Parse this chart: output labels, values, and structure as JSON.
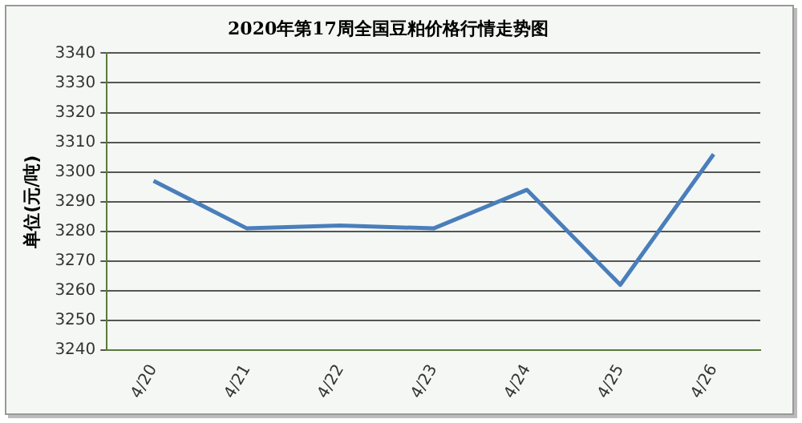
{
  "chart_data": {
    "type": "line",
    "title": "2020年第17周全国豆粕价格行情走势图",
    "ylabel": "单位(元/吨)",
    "categories": [
      "4/20",
      "4/21",
      "4/22",
      "4/23",
      "4/24",
      "4/25",
      "4/26"
    ],
    "series": [
      {
        "color": "#4a7ebb",
        "values": [
          3297,
          3281,
          3282,
          3281,
          3294,
          3262,
          3306
        ]
      }
    ],
    "ylim": [
      3240,
      3340
    ],
    "yticks": [
      3240,
      3250,
      3260,
      3270,
      3280,
      3290,
      3300,
      3310,
      3320,
      3330,
      3340
    ],
    "grid": "y",
    "legend": false,
    "marker": "none",
    "line_style": "solid"
  }
}
